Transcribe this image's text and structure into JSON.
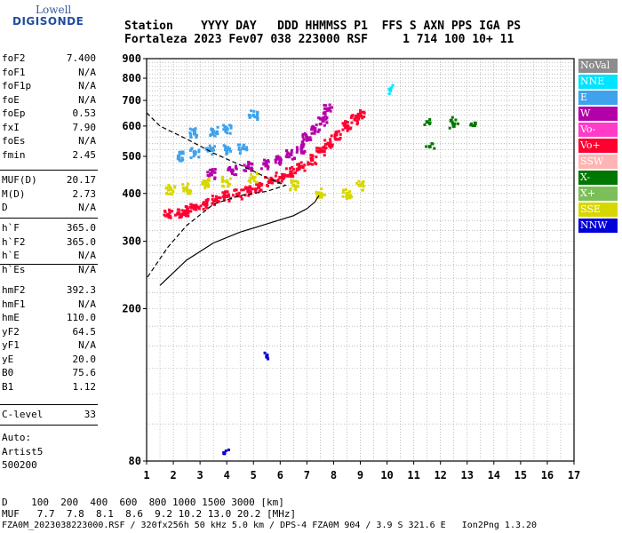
{
  "logo": {
    "line1": "Lowell",
    "line2": "DIGISONDE"
  },
  "header": {
    "line1": "Station    YYYY DAY   DDD HHMMSS P1  FFS S AXN PPS IGA PS",
    "line2": "Fortaleza 2023 Fev07 038 223000 RSF     1 714 100 10+ 11"
  },
  "params": {
    "group1": [
      {
        "name": "foF2",
        "value": "7.400"
      },
      {
        "name": "foF1",
        "value": "N/A"
      },
      {
        "name": "foF1p",
        "value": "N/A"
      },
      {
        "name": "foE",
        "value": "N/A"
      },
      {
        "name": "foEp",
        "value": "0.53"
      },
      {
        "name": "fxI",
        "value": "7.90"
      },
      {
        "name": "foEs",
        "value": "N/A"
      },
      {
        "name": "fmin",
        "value": "2.45"
      }
    ],
    "group2": [
      {
        "name": "MUF(D)",
        "value": "20.17"
      },
      {
        "name": "M(D)",
        "value": "2.73"
      },
      {
        "name": "D",
        "value": "N/A"
      }
    ],
    "group3": [
      {
        "name": "h`F",
        "value": "365.0"
      },
      {
        "name": "h`F2",
        "value": "365.0"
      },
      {
        "name": "h`E",
        "value": "N/A"
      },
      {
        "name": "h`Es",
        "value": "N/A"
      }
    ],
    "group4": [
      {
        "name": "hmF2",
        "value": "392.3"
      },
      {
        "name": "hmF1",
        "value": "N/A"
      },
      {
        "name": "hmE",
        "value": "110.0"
      },
      {
        "name": "yF2",
        "value": "64.5"
      },
      {
        "name": "yF1",
        "value": "N/A"
      },
      {
        "name": "yE",
        "value": "20.0"
      },
      {
        "name": "B0",
        "value": "75.6"
      },
      {
        "name": "B1",
        "value": "1.12"
      }
    ],
    "group5": [
      {
        "name": "C-level",
        "value": "33"
      }
    ],
    "auto": [
      "Auto:",
      "Artist5",
      "500200"
    ]
  },
  "legend": [
    {
      "label": "NoVal",
      "color": "#8c8c8c"
    },
    {
      "label": "NNE",
      "color": "#00e4ff"
    },
    {
      "label": "E",
      "color": "#3fa2ec"
    },
    {
      "label": "W",
      "color": "#b400a8"
    },
    {
      "label": "Vo-",
      "color": "#ff3cc8"
    },
    {
      "label": "Vo+",
      "color": "#ff0030"
    },
    {
      "label": "SSW",
      "color": "#ffb4b4"
    },
    {
      "label": "X-",
      "color": "#007800"
    },
    {
      "label": "X+",
      "color": "#7cbe5a"
    },
    {
      "label": "SSE",
      "color": "#d7d700"
    },
    {
      "label": "NNW",
      "color": "#0000d8"
    }
  ],
  "footer": {
    "d_row": "D    100  200  400  600  800 1000 1500 3000 [km]",
    "muf_row": "MUF   7.7  7.8  8.1  8.6  9.2 10.2 13.0 20.2 [MHz]",
    "info": "FZA0M_2023038223000.RSF / 320fx256h 50 kHz 5.0 km / DPS-4 FZA0M 904 / 3.9 S 321.6 E   Ion2Png 1.3.20"
  },
  "chart_data": {
    "type": "scatter",
    "x_ticks": [
      "1",
      "2",
      "3",
      "4",
      "5",
      "6",
      "7",
      "8",
      "9",
      "10",
      "11",
      "12",
      "13",
      "14",
      "15",
      "16",
      "17"
    ],
    "y_ticks": [
      "80",
      "200",
      "300",
      "400",
      "500",
      "600",
      "700",
      "800",
      "900"
    ],
    "xlim": [
      1,
      17
    ],
    "ylim": [
      80,
      900
    ],
    "y_scale": "log",
    "grid": true,
    "traces": [
      {
        "name": "Vo+",
        "color": "#ff0030",
        "points": [
          [
            1.8,
            352
          ],
          [
            2.2,
            355
          ],
          [
            2.5,
            360
          ],
          [
            2.8,
            365
          ],
          [
            3.2,
            375
          ],
          [
            3.6,
            385
          ],
          [
            4.0,
            393
          ],
          [
            4.4,
            398
          ],
          [
            4.8,
            405
          ],
          [
            5.2,
            415
          ],
          [
            5.6,
            428
          ],
          [
            6.0,
            440
          ],
          [
            6.4,
            455
          ],
          [
            6.8,
            470
          ],
          [
            7.2,
            490
          ],
          [
            7.5,
            515
          ],
          [
            7.8,
            540
          ],
          [
            8.1,
            570
          ],
          [
            8.5,
            600
          ],
          [
            8.8,
            625
          ],
          [
            9.0,
            640
          ]
        ]
      },
      {
        "name": "W",
        "color": "#b400a8",
        "points": [
          [
            3.4,
            450
          ],
          [
            4.2,
            460
          ],
          [
            4.8,
            470
          ],
          [
            5.4,
            478
          ],
          [
            6.0,
            490
          ],
          [
            6.4,
            505
          ],
          [
            6.8,
            525
          ],
          [
            7.0,
            560
          ],
          [
            7.3,
            590
          ],
          [
            7.6,
            620
          ],
          [
            7.8,
            665
          ]
        ]
      },
      {
        "name": "E",
        "color": "#3fa2ec",
        "points": [
          [
            2.2,
            500
          ],
          [
            2.8,
            510
          ],
          [
            3.4,
            520
          ],
          [
            4.0,
            520
          ],
          [
            4.6,
            525
          ],
          [
            2.8,
            575
          ],
          [
            3.5,
            580
          ],
          [
            4.0,
            590
          ],
          [
            5.0,
            640
          ]
        ]
      },
      {
        "name": "SSE",
        "color": "#d7d700",
        "points": [
          [
            1.9,
            410
          ],
          [
            2.5,
            412
          ],
          [
            3.2,
            425
          ],
          [
            4.0,
            430
          ],
          [
            5.0,
            440
          ],
          [
            6.5,
            420
          ],
          [
            7.5,
            400
          ],
          [
            8.5,
            400
          ],
          [
            9.0,
            420
          ]
        ]
      },
      {
        "name": "X-",
        "color": "#007800",
        "points": [
          [
            11.5,
            615
          ],
          [
            12.4,
            620
          ],
          [
            12.5,
            600
          ],
          [
            13.3,
            610
          ],
          [
            11.6,
            530
          ]
        ]
      },
      {
        "name": "NNE",
        "color": "#00e4ff",
        "points": [
          [
            10.1,
            748
          ]
        ]
      },
      {
        "name": "NNW",
        "color": "#0000d8",
        "points": [
          [
            3.9,
            84
          ],
          [
            5.5,
            150
          ]
        ]
      }
    ],
    "profile_solid": [
      [
        1.5,
        230
      ],
      [
        2.5,
        268
      ],
      [
        3.5,
        297
      ],
      [
        4.5,
        317
      ],
      [
        5.5,
        333
      ],
      [
        6.5,
        350
      ],
      [
        7.0,
        365
      ],
      [
        7.3,
        380
      ],
      [
        7.45,
        395
      ]
    ],
    "profile_dashed": [
      [
        1.0,
        650
      ],
      [
        1.5,
        600
      ],
      [
        2.5,
        555
      ],
      [
        3.5,
        510
      ],
      [
        4.5,
        475
      ],
      [
        5.5,
        440
      ],
      [
        6.2,
        420
      ],
      [
        5.5,
        405
      ],
      [
        4.5,
        395
      ],
      [
        3.5,
        375
      ],
      [
        2.5,
        330
      ],
      [
        1.8,
        290
      ],
      [
        1.0,
        240
      ]
    ]
  }
}
